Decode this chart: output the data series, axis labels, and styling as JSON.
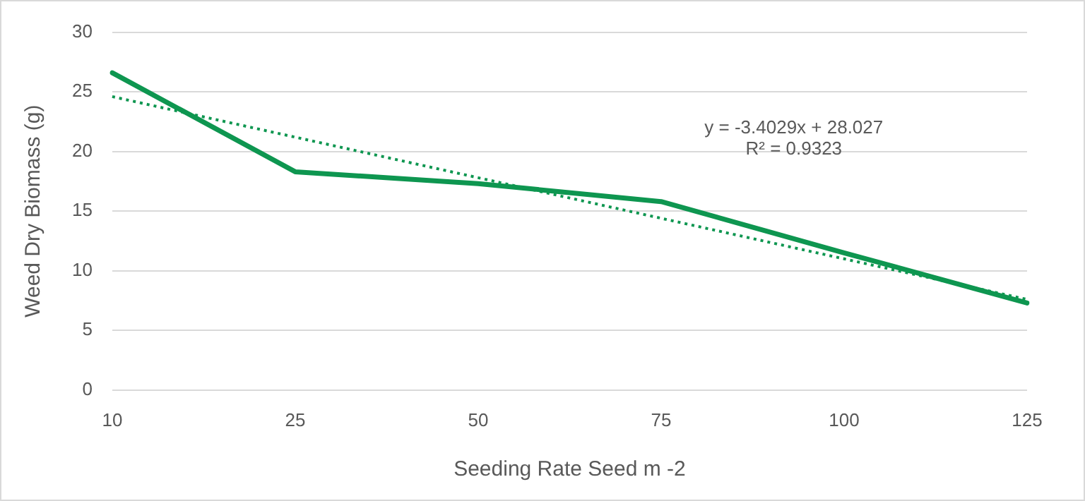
{
  "chart_data": {
    "type": "line",
    "xlabel": "Seeding Rate Seed m -2",
    "ylabel": "Weed Dry Biomass (g)",
    "categories": [
      "10",
      "25",
      "50",
      "75",
      "100",
      "125"
    ],
    "series": [
      {
        "color": "#0e9650",
        "values": [
          26.6,
          18.3,
          17.3,
          15.8,
          11.5,
          7.3
        ],
        "line_style": "solid"
      },
      {
        "color": "#0e9650",
        "values": [
          24.6,
          21.2,
          17.8,
          14.4,
          11.0,
          7.6
        ],
        "line_style": "dotted"
      }
    ],
    "ylim": [
      0,
      30
    ],
    "yticks": [
      0,
      5,
      10,
      15,
      20,
      25,
      30
    ],
    "grid": "y",
    "legend": false,
    "marker": "none",
    "annotations": [
      "y = -3.4029x + 28.027",
      "R² = 0.9323"
    ]
  }
}
